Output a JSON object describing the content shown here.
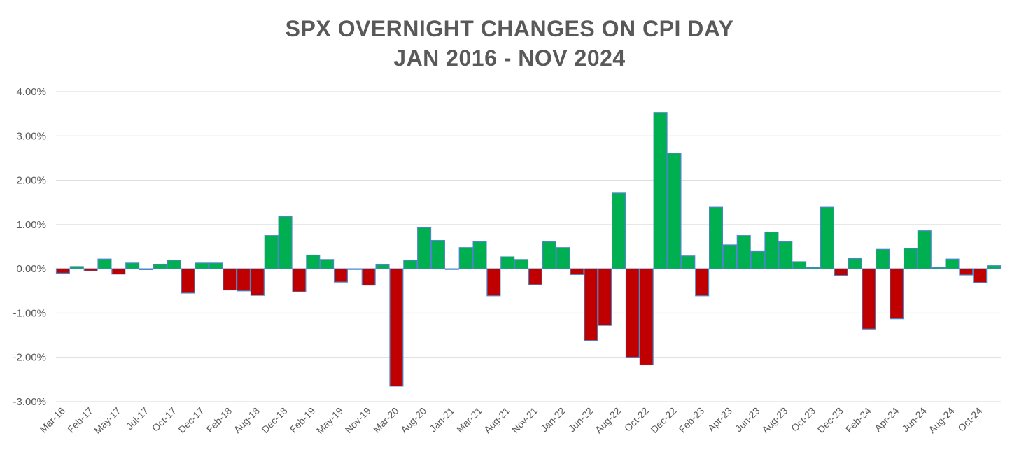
{
  "chart_data": {
    "type": "bar",
    "title": "SPX OVERNIGHT CHANGES ON CPI DAY",
    "subtitle": "JAN 2016 - NOV 2024",
    "xlabel": "",
    "ylabel": "",
    "ylim": [
      -3.0,
      4.0
    ],
    "y_ticks": [
      "4.00%",
      "3.00%",
      "2.00%",
      "1.00%",
      "0.00%",
      "-1.00%",
      "-2.00%",
      "-3.00%"
    ],
    "y_tick_values": [
      4,
      3,
      2,
      1,
      0,
      -1,
      -2,
      -3
    ],
    "grid": true,
    "positive_color": "#00b050",
    "negative_color": "#c00000",
    "bar_border_color": "#4a86c8",
    "x_tick_labels": [
      {
        "index": 0,
        "label": "Mar-16"
      },
      {
        "index": 2,
        "label": "Feb-17"
      },
      {
        "index": 4,
        "label": "May-17"
      },
      {
        "index": 6,
        "label": "Jul-17"
      },
      {
        "index": 8,
        "label": "Oct-17"
      },
      {
        "index": 10,
        "label": "Dec-17"
      },
      {
        "index": 12,
        "label": "Feb-18"
      },
      {
        "index": 14,
        "label": "Aug-18"
      },
      {
        "index": 16,
        "label": "Dec-18"
      },
      {
        "index": 18,
        "label": "Feb-19"
      },
      {
        "index": 20,
        "label": "May-19"
      },
      {
        "index": 22,
        "label": "Nov-19"
      },
      {
        "index": 24,
        "label": "Mar-20"
      },
      {
        "index": 26,
        "label": "Aug-20"
      },
      {
        "index": 28,
        "label": "Jan-21"
      },
      {
        "index": 30,
        "label": "Mar-21"
      },
      {
        "index": 32,
        "label": "Aug-21"
      },
      {
        "index": 34,
        "label": "Nov-21"
      },
      {
        "index": 36,
        "label": "Jan-22"
      },
      {
        "index": 38,
        "label": "Jun-22"
      },
      {
        "index": 40,
        "label": "Aug-22"
      },
      {
        "index": 42,
        "label": "Oct-22"
      },
      {
        "index": 44,
        "label": "Dec-22"
      },
      {
        "index": 46,
        "label": "Feb-23"
      },
      {
        "index": 48,
        "label": "Apr-23"
      },
      {
        "index": 50,
        "label": "Jun-23"
      },
      {
        "index": 52,
        "label": "Aug-23"
      },
      {
        "index": 54,
        "label": "Oct-23"
      },
      {
        "index": 56,
        "label": "Dec-23"
      },
      {
        "index": 58,
        "label": "Feb-24"
      },
      {
        "index": 60,
        "label": "Apr-24"
      },
      {
        "index": 62,
        "label": "Jun-24"
      },
      {
        "index": 64,
        "label": "Aug-24"
      },
      {
        "index": 66,
        "label": "Oct-24"
      }
    ],
    "values": [
      -0.1,
      0.05,
      -0.05,
      0.22,
      -0.12,
      0.13,
      -0.02,
      0.1,
      0.19,
      -0.55,
      0.13,
      0.13,
      -0.48,
      -0.5,
      -0.6,
      0.75,
      1.18,
      -0.52,
      0.31,
      0.21,
      -0.3,
      0.0,
      -0.37,
      0.09,
      -2.65,
      0.19,
      0.93,
      0.64,
      0.0,
      0.48,
      0.61,
      -0.61,
      0.27,
      0.21,
      -0.36,
      0.61,
      0.48,
      -0.13,
      -1.62,
      -1.28,
      1.71,
      -2.0,
      -2.17,
      3.53,
      2.61,
      0.29,
      -0.61,
      1.39,
      0.54,
      0.75,
      0.39,
      0.83,
      0.61,
      0.16,
      0.03,
      1.39,
      -0.15,
      0.23,
      -1.36,
      0.44,
      -1.13,
      0.46,
      0.86,
      0.03,
      0.22,
      -0.14,
      -0.31,
      0.07
    ]
  }
}
